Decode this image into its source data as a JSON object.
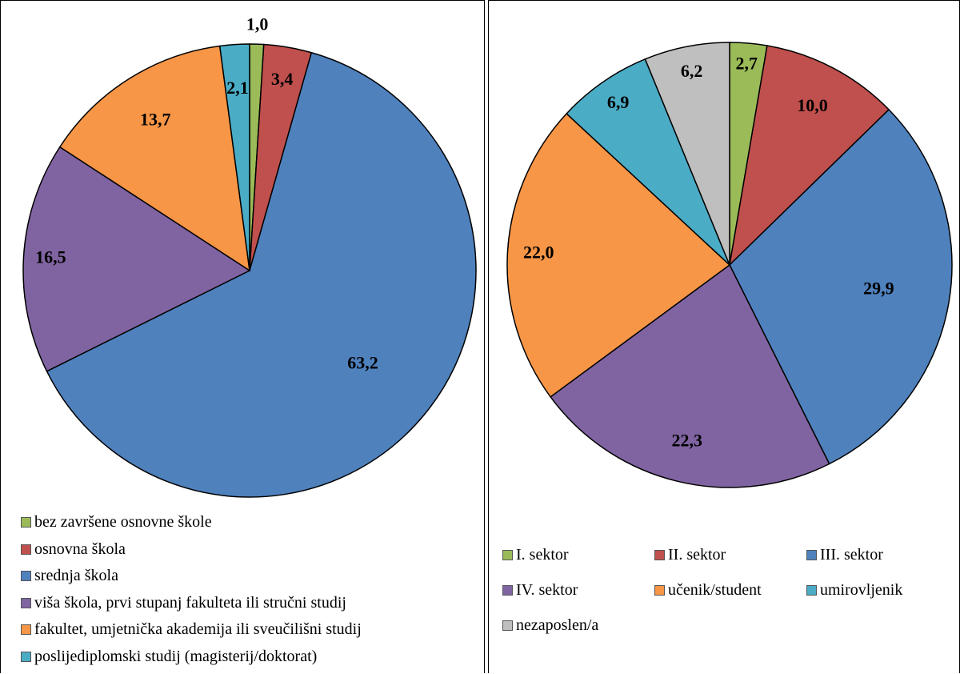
{
  "chart_data": [
    {
      "type": "pie",
      "title": "",
      "categories": [
        "bez završene osnovne škole",
        "osnovna škola",
        "srednja škola",
        "viša škola, prvi stupanj fakulteta ili stručni studij",
        "fakultet, umjetnička akademija ili sveučilišni studij",
        "poslijediplomski studij (magisterij/doktorat)"
      ],
      "values": [
        1.0,
        3.4,
        63.2,
        16.5,
        13.7,
        2.1
      ],
      "labels": [
        "1,0",
        "3,4",
        "63,2",
        "16,5",
        "13,7",
        "2,1"
      ],
      "colors": [
        "#9BBB59",
        "#C0504D",
        "#4F81BD",
        "#8064A2",
        "#F79646",
        "#4BACC6"
      ],
      "legend_position": "bottom"
    },
    {
      "type": "pie",
      "title": "",
      "categories": [
        "I. sektor",
        "II. sektor",
        "III. sektor",
        "IV. sektor",
        "učenik/student",
        "umirovljenik",
        "nezaposlen/a"
      ],
      "values": [
        2.7,
        10.0,
        29.9,
        22.3,
        22.0,
        6.9,
        6.2
      ],
      "labels": [
        "2,7",
        "10,0",
        "29,9",
        "22,3",
        "22,0",
        "6,9",
        "6,2"
      ],
      "colors": [
        "#9BBB59",
        "#C0504D",
        "#4F81BD",
        "#8064A2",
        "#F79646",
        "#4BACC6",
        "#BFBFBF"
      ],
      "legend_position": "bottom"
    }
  ]
}
